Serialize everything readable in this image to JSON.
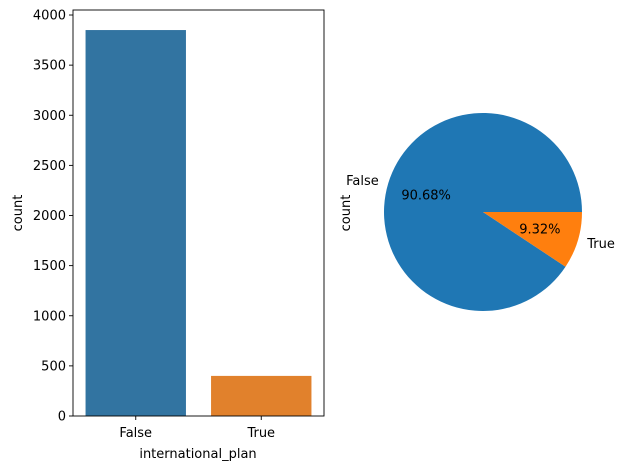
{
  "chart_data": [
    {
      "type": "bar",
      "categories": [
        "False",
        "True"
      ],
      "values": [
        3850,
        400
      ],
      "colors": [
        "#3274a1",
        "#e1812c"
      ],
      "xlabel": "international_plan",
      "ylabel": "count",
      "ylim": [
        0,
        4050
      ],
      "yticks": [
        0,
        500,
        1000,
        1500,
        2000,
        2500,
        3000,
        3500,
        4000
      ],
      "grid": false
    },
    {
      "type": "pie",
      "labels": [
        "False",
        "True"
      ],
      "values": [
        90.68,
        9.32
      ],
      "pct_labels": [
        "90.68%",
        "9.32%"
      ],
      "colors": [
        "#1f77b4",
        "#ff7f0e"
      ],
      "ylabel": "count"
    }
  ]
}
